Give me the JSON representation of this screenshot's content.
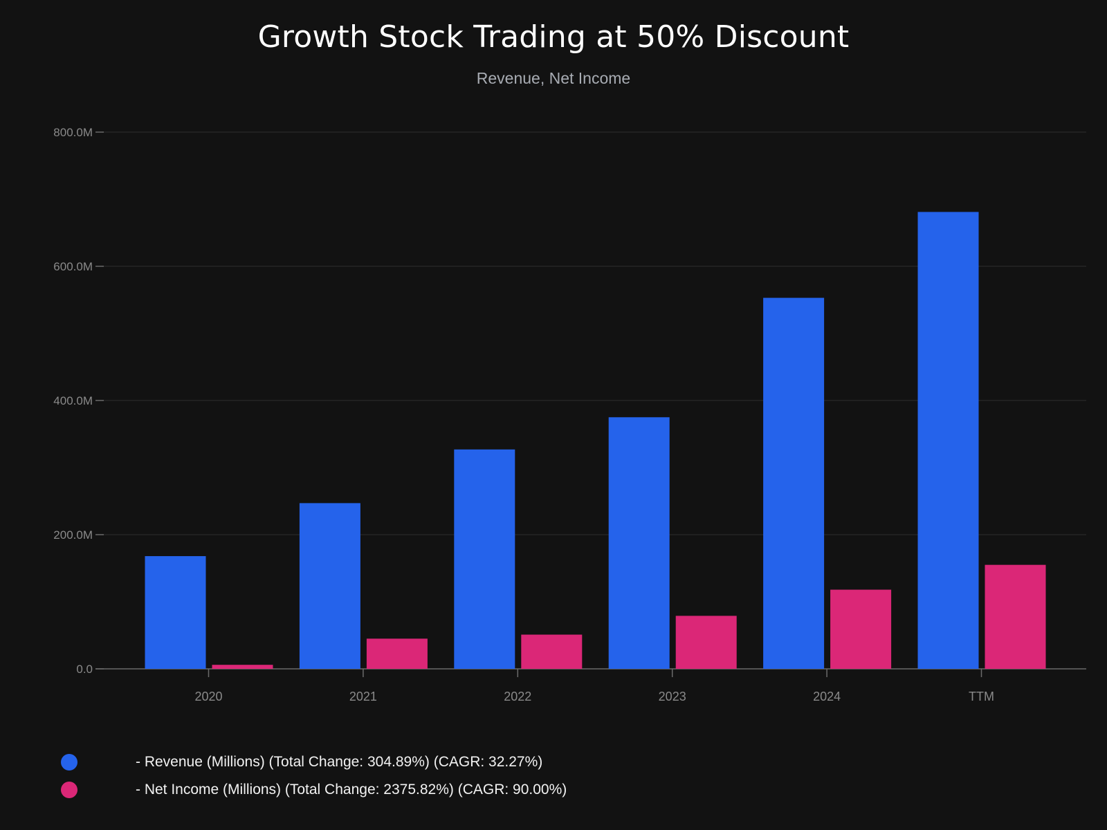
{
  "colors": {
    "background": "#121212",
    "revenue": "#2563eb",
    "net_income": "#db2777",
    "grid": "#2a2a2a",
    "axis": "#6b6b6b",
    "tick_text": "#8a8a8a"
  },
  "chart_data": {
    "type": "bar",
    "title": "Growth Stock Trading at 50% Discount",
    "subtitle": "Revenue, Net Income",
    "categories": [
      "2020",
      "2021",
      "2022",
      "2023",
      "2024",
      "TTM"
    ],
    "series": [
      {
        "name": "Revenue (Millions)",
        "color": "#2563eb",
        "values": [
          168,
          247,
          327,
          375,
          553,
          681
        ]
      },
      {
        "name": "Net Income (Millions)",
        "color": "#db2777",
        "values": [
          6,
          45,
          51,
          79,
          118,
          155
        ]
      }
    ],
    "ylim": [
      0,
      800
    ],
    "yticks": [
      {
        "value": 0,
        "label": "0.0"
      },
      {
        "value": 200,
        "label": "200.0M"
      },
      {
        "value": 400,
        "label": "400.0M"
      },
      {
        "value": 600,
        "label": "600.0M"
      },
      {
        "value": 800,
        "label": "800.0M"
      }
    ],
    "grid": true,
    "legend": [
      {
        "label": "- Revenue (Millions) (Total Change: 304.89%) (CAGR: 32.27%)",
        "color": "#2563eb"
      },
      {
        "label": "- Net Income (Millions) (Total Change: 2375.82%) (CAGR: 90.00%)",
        "color": "#db2777"
      }
    ],
    "legend_position": "bottom-left"
  }
}
